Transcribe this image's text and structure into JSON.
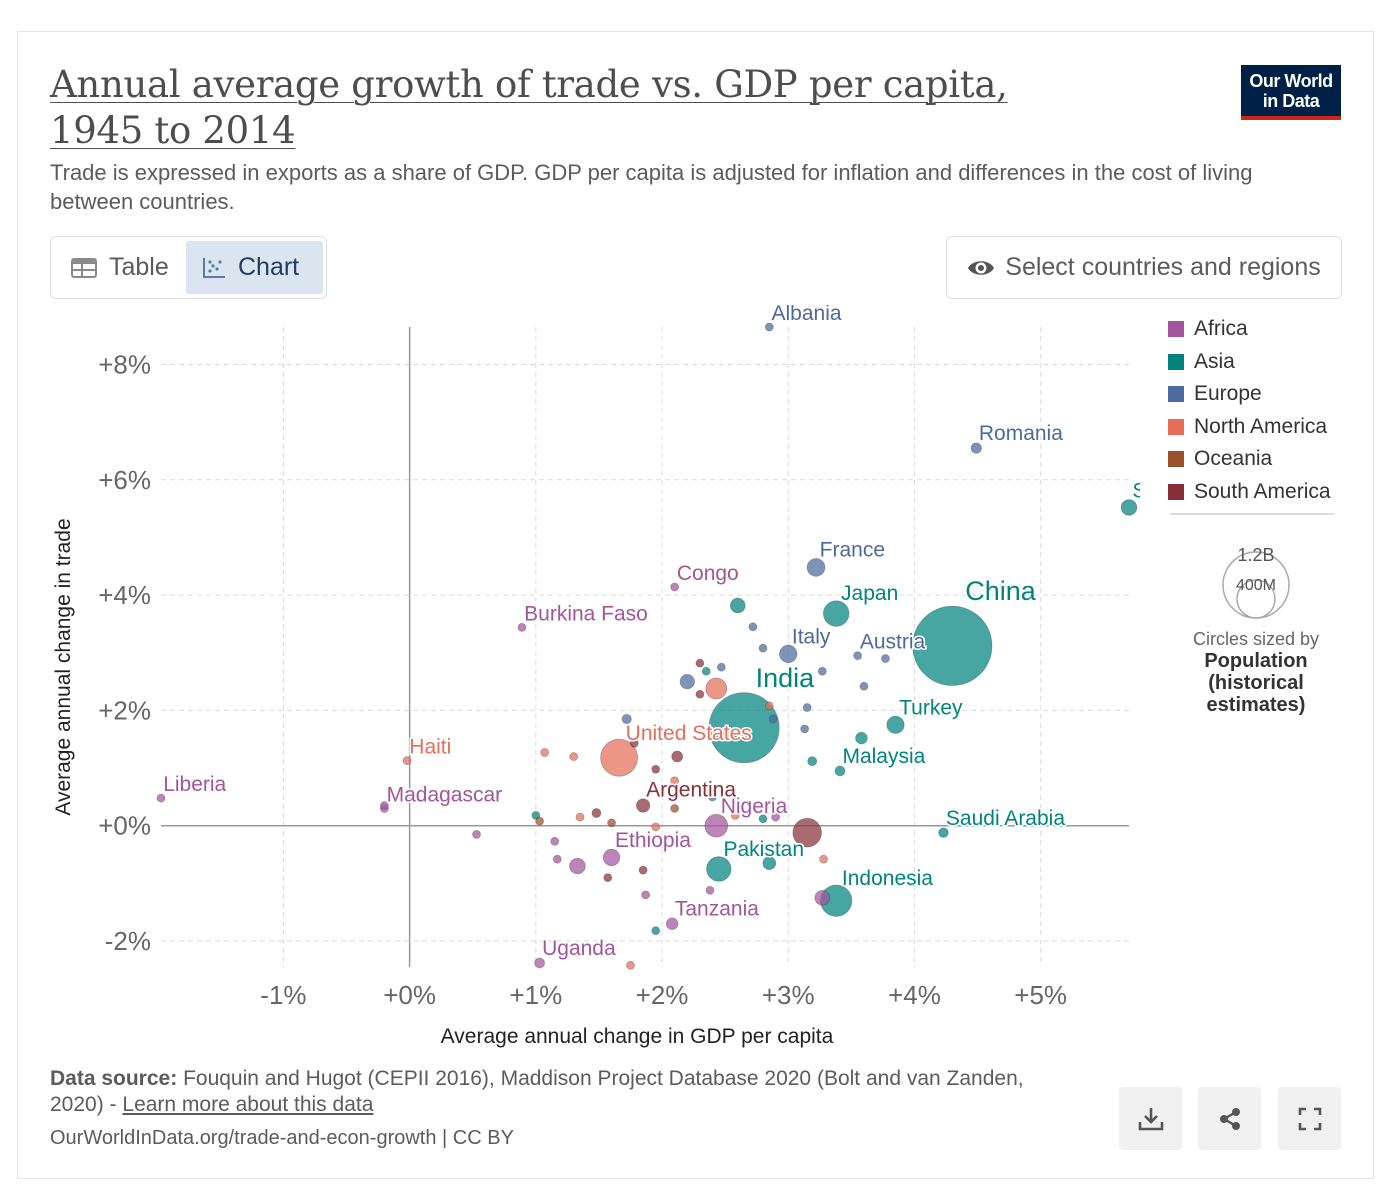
{
  "header": {
    "title": "Annual average growth of trade vs. GDP per capita, 1945 to 2014",
    "subtitle": "Trade is expressed in exports as a share of GDP. GDP per capita is adjusted for inflation and differences in the cost of living between countries.",
    "logo_line1": "Our World",
    "logo_line2": "in Data"
  },
  "controls": {
    "table_label": "Table",
    "chart_label": "Chart",
    "select_label": "Select countries and regions"
  },
  "legend": {
    "items": [
      {
        "label": "Africa",
        "color": "#a2559c"
      },
      {
        "label": "Asia",
        "color": "#00847e"
      },
      {
        "label": "Europe",
        "color": "#4c6a9c"
      },
      {
        "label": "North America",
        "color": "#e56e5a"
      },
      {
        "label": "Oceania",
        "color": "#9a5129"
      },
      {
        "label": "South America",
        "color": "#883039"
      }
    ],
    "size_big": "1.2B",
    "size_small": "400M",
    "size_note": "Circles sized by",
    "size_metric": "Population (historical estimates)"
  },
  "chart_data": {
    "type": "scatter",
    "title": "Annual average growth of trade vs. GDP per capita, 1945 to 2014",
    "xlabel": "Average annual change in GDP per capita",
    "ylabel": "Average annual change in trade",
    "xlim": [
      -1.97,
      5.7
    ],
    "ylim": [
      -2.45,
      8.65
    ],
    "x_ticks": [
      -1,
      0,
      1,
      2,
      3,
      4,
      5
    ],
    "x_tick_labels": [
      "-1%",
      "+0%",
      "+1%",
      "+2%",
      "+3%",
      "+4%",
      "+5%"
    ],
    "y_ticks": [
      -2,
      0,
      2,
      4,
      6,
      8
    ],
    "y_tick_labels": [
      "-2%",
      "+0%",
      "+2%",
      "+4%",
      "+6%",
      "+8%"
    ],
    "grid": true,
    "legend_position": "right",
    "size_metric": "Population (historical estimates)",
    "points": [
      {
        "label": "Albania",
        "region": "Europe",
        "x": 2.85,
        "y": 8.65,
        "pop": 2.5
      },
      {
        "label": "Romania",
        "region": "Europe",
        "x": 4.49,
        "y": 6.55,
        "pop": 20
      },
      {
        "label": "South Korea",
        "region": "Asia",
        "x": 5.7,
        "y": 5.52,
        "pop": 45
      },
      {
        "label": "France",
        "region": "Europe",
        "x": 3.22,
        "y": 4.48,
        "pop": 58
      },
      {
        "label": "Congo",
        "region": "Africa",
        "x": 2.1,
        "y": 4.14,
        "pop": 2.5
      },
      {
        "label": "Japan",
        "region": "Asia",
        "x": 3.38,
        "y": 3.68,
        "pop": 120
      },
      {
        "label": "China",
        "region": "Asia",
        "x": 4.3,
        "y": 3.12,
        "pop": 1150
      },
      {
        "label": "Burkina Faso",
        "region": "Africa",
        "x": 0.89,
        "y": 3.44,
        "pop": 9
      },
      {
        "label": "Italy",
        "region": "Europe",
        "x": 3.0,
        "y": 2.98,
        "pop": 56
      },
      {
        "label": "Austria",
        "region": "Europe",
        "x": 3.55,
        "y": 2.95,
        "pop": 8
      },
      {
        "label": "India",
        "region": "Asia",
        "x": 2.65,
        "y": 1.7,
        "pop": 900
      },
      {
        "label": "Turkey",
        "region": "Asia",
        "x": 3.85,
        "y": 1.75,
        "pop": 55
      },
      {
        "label": "United States",
        "region": "North America",
        "x": 1.66,
        "y": 1.18,
        "pop": 250
      },
      {
        "label": "Malaysia",
        "region": "Asia",
        "x": 3.41,
        "y": 0.95,
        "pop": 18
      },
      {
        "label": "Haiti",
        "region": "North America",
        "x": -0.02,
        "y": 1.13,
        "pop": 7
      },
      {
        "label": "Liberia",
        "region": "Africa",
        "x": -1.97,
        "y": 0.48,
        "pop": 2.2
      },
      {
        "label": "Madagascar",
        "region": "Africa",
        "x": -0.2,
        "y": 0.3,
        "pop": 12
      },
      {
        "label": "Argentina",
        "region": "South America",
        "x": 1.85,
        "y": 0.35,
        "pop": 33
      },
      {
        "label": "Nigeria",
        "region": "Africa",
        "x": 2.43,
        "y": 0.0,
        "pop": 95
      },
      {
        "label": "Saudi Arabia",
        "region": "Asia",
        "x": 4.23,
        "y": -0.12,
        "pop": 17
      },
      {
        "label": "Ethiopia",
        "region": "Africa",
        "x": 1.6,
        "y": -0.55,
        "pop": 50
      },
      {
        "label": "Pakistan",
        "region": "Asia",
        "x": 2.45,
        "y": -0.75,
        "pop": 110
      },
      {
        "label": "Indonesia",
        "region": "Asia",
        "x": 3.38,
        "y": -1.3,
        "pop": 180
      },
      {
        "label": "Tanzania",
        "region": "Africa",
        "x": 2.08,
        "y": -1.7,
        "pop": 25
      },
      {
        "label": "Uganda",
        "region": "Africa",
        "x": 1.03,
        "y": -2.38,
        "pop": 18
      },
      {
        "label": "",
        "region": "South America",
        "x": 3.15,
        "y": -0.12,
        "pop": 150
      },
      {
        "label": "",
        "region": "Africa",
        "x": 3.27,
        "y": -1.25,
        "pop": 40
      },
      {
        "label": "",
        "region": "Africa",
        "x": 1.33,
        "y": -0.7,
        "pop": 45
      },
      {
        "label": "",
        "region": "Asia",
        "x": 2.6,
        "y": 3.82,
        "pop": 40
      },
      {
        "label": "",
        "region": "Asia",
        "x": 2.85,
        "y": -0.65,
        "pop": 30
      },
      {
        "label": "",
        "region": "Asia",
        "x": 3.58,
        "y": 1.52,
        "pop": 25
      },
      {
        "label": "",
        "region": "North America",
        "x": 2.43,
        "y": 2.38,
        "pop": 80
      },
      {
        "label": "",
        "region": "Europe",
        "x": 2.2,
        "y": 2.5,
        "pop": 38
      },
      {
        "label": "",
        "region": "Europe",
        "x": 3.27,
        "y": 2.68,
        "pop": 10
      },
      {
        "label": "",
        "region": "Europe",
        "x": 2.88,
        "y": 1.85,
        "pop": 10
      },
      {
        "label": "",
        "region": "Europe",
        "x": 1.72,
        "y": 1.85,
        "pop": 16
      },
      {
        "label": "",
        "region": "Europe",
        "x": 2.72,
        "y": 3.45,
        "pop": 4
      },
      {
        "label": "",
        "region": "Europe",
        "x": 2.8,
        "y": 3.08,
        "pop": 5
      },
      {
        "label": "",
        "region": "Europe",
        "x": 2.47,
        "y": 2.75,
        "pop": 4
      },
      {
        "label": "",
        "region": "Europe",
        "x": 3.15,
        "y": 2.05,
        "pop": 4
      },
      {
        "label": "",
        "region": "Europe",
        "x": 3.6,
        "y": 2.42,
        "pop": 4
      },
      {
        "label": "",
        "region": "Europe",
        "x": 3.77,
        "y": 2.9,
        "pop": 3
      },
      {
        "label": "",
        "region": "Europe",
        "x": 3.13,
        "y": 1.68,
        "pop": 4
      },
      {
        "label": "",
        "region": "Europe",
        "x": 2.4,
        "y": 0.5,
        "pop": 3
      },
      {
        "label": "",
        "region": "Asia",
        "x": 3.19,
        "y": 1.12,
        "pop": 15
      },
      {
        "label": "",
        "region": "Asia",
        "x": 2.35,
        "y": 2.68,
        "pop": 3
      },
      {
        "label": "",
        "region": "Asia",
        "x": 2.8,
        "y": 0.12,
        "pop": 10
      },
      {
        "label": "",
        "region": "Asia",
        "x": 1.0,
        "y": 0.18,
        "pop": 5
      },
      {
        "label": "",
        "region": "Asia",
        "x": 1.95,
        "y": -1.82,
        "pop": 2
      },
      {
        "label": "",
        "region": "Africa",
        "x": 0.53,
        "y": -0.15,
        "pop": 4
      },
      {
        "label": "",
        "region": "Africa",
        "x": 1.15,
        "y": -0.27,
        "pop": 4
      },
      {
        "label": "",
        "region": "Africa",
        "x": 1.17,
        "y": -0.58,
        "pop": 8
      },
      {
        "label": "",
        "region": "Africa",
        "x": 1.87,
        "y": -1.2,
        "pop": 4
      },
      {
        "label": "",
        "region": "Africa",
        "x": 2.38,
        "y": -1.12,
        "pop": 4
      },
      {
        "label": "",
        "region": "Africa",
        "x": 2.9,
        "y": 0.15,
        "pop": 10
      },
      {
        "label": "",
        "region": "North America",
        "x": 1.07,
        "y": 1.27,
        "pop": 6
      },
      {
        "label": "",
        "region": "North America",
        "x": 1.3,
        "y": 1.2,
        "pop": 5
      },
      {
        "label": "",
        "region": "North America",
        "x": 1.35,
        "y": 0.15,
        "pop": 5
      },
      {
        "label": "",
        "region": "North America",
        "x": 1.95,
        "y": -0.02,
        "pop": 10
      },
      {
        "label": "",
        "region": "North America",
        "x": 2.1,
        "y": 0.78,
        "pop": 5
      },
      {
        "label": "",
        "region": "North America",
        "x": 2.58,
        "y": 0.18,
        "pop": 4
      },
      {
        "label": "",
        "region": "North America",
        "x": 2.85,
        "y": 2.08,
        "pop": 4
      },
      {
        "label": "",
        "region": "North America",
        "x": 3.28,
        "y": -0.58,
        "pop": 4
      },
      {
        "label": "",
        "region": "North America",
        "x": 1.75,
        "y": -2.42,
        "pop": 3
      },
      {
        "label": "",
        "region": "Oceania",
        "x": 1.6,
        "y": 0.05,
        "pop": 3
      },
      {
        "label": "",
        "region": "Oceania",
        "x": 2.1,
        "y": 0.3,
        "pop": 4
      },
      {
        "label": "",
        "region": "Oceania",
        "x": 1.03,
        "y": 0.08,
        "pop": 3
      },
      {
        "label": "",
        "region": "South America",
        "x": 1.48,
        "y": 0.22,
        "pop": 15
      },
      {
        "label": "",
        "region": "South America",
        "x": 2.12,
        "y": 1.2,
        "pop": 22
      },
      {
        "label": "",
        "region": "South America",
        "x": 1.78,
        "y": 1.43,
        "pop": 5
      },
      {
        "label": "",
        "region": "South America",
        "x": 1.95,
        "y": 0.98,
        "pop": 6
      },
      {
        "label": "",
        "region": "South America",
        "x": 1.57,
        "y": -0.9,
        "pop": 8
      },
      {
        "label": "",
        "region": "South America",
        "x": 1.85,
        "y": -0.77,
        "pop": 5
      },
      {
        "label": "",
        "region": "South America",
        "x": 2.3,
        "y": 2.28,
        "pop": 5
      },
      {
        "label": "",
        "region": "South America",
        "x": 2.3,
        "y": 2.82,
        "pop": 4
      },
      {
        "label": "",
        "region": "Africa",
        "x": -0.2,
        "y": 0.35,
        "pop": 3
      }
    ]
  },
  "footer": {
    "source_label": "Data source:",
    "source_text": "Fouquin and Hugot (CEPII 2016), Maddison Project Database 2020 (Bolt and van Zanden, 2020) -",
    "learn_more": "Learn more about this data",
    "url": "OurWorldInData.org/trade-and-econ-growth | CC BY"
  }
}
